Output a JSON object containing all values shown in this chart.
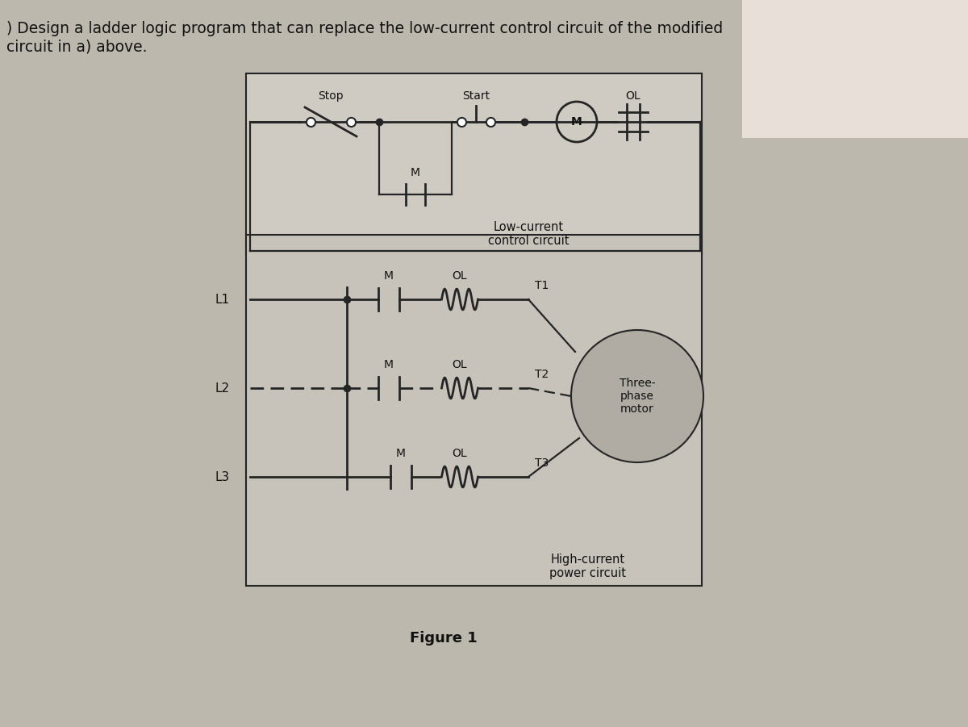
{
  "bg_color": "#bdb8ae",
  "box_bg_light": "#d0cbc2",
  "box_bg_dark": "#c8c3ba",
  "title_text": ") Design a ladder logic program that can replace the low-current control circuit of the modified\ncircuit in a) above.",
  "title_fontsize": 13.5,
  "figure_label": "Figure 1",
  "low_current_label": "Low-current\ncontrol circuit",
  "high_current_label": "High-current\npower circuit",
  "three_phase_label": "Three-\nphase\nmotor",
  "line_color": "#252525",
  "dot_color": "#252525",
  "white_color": "#ffffff",
  "motor_fill": "#b0aba3",
  "lw": 1.6,
  "lw_thick": 2.0
}
